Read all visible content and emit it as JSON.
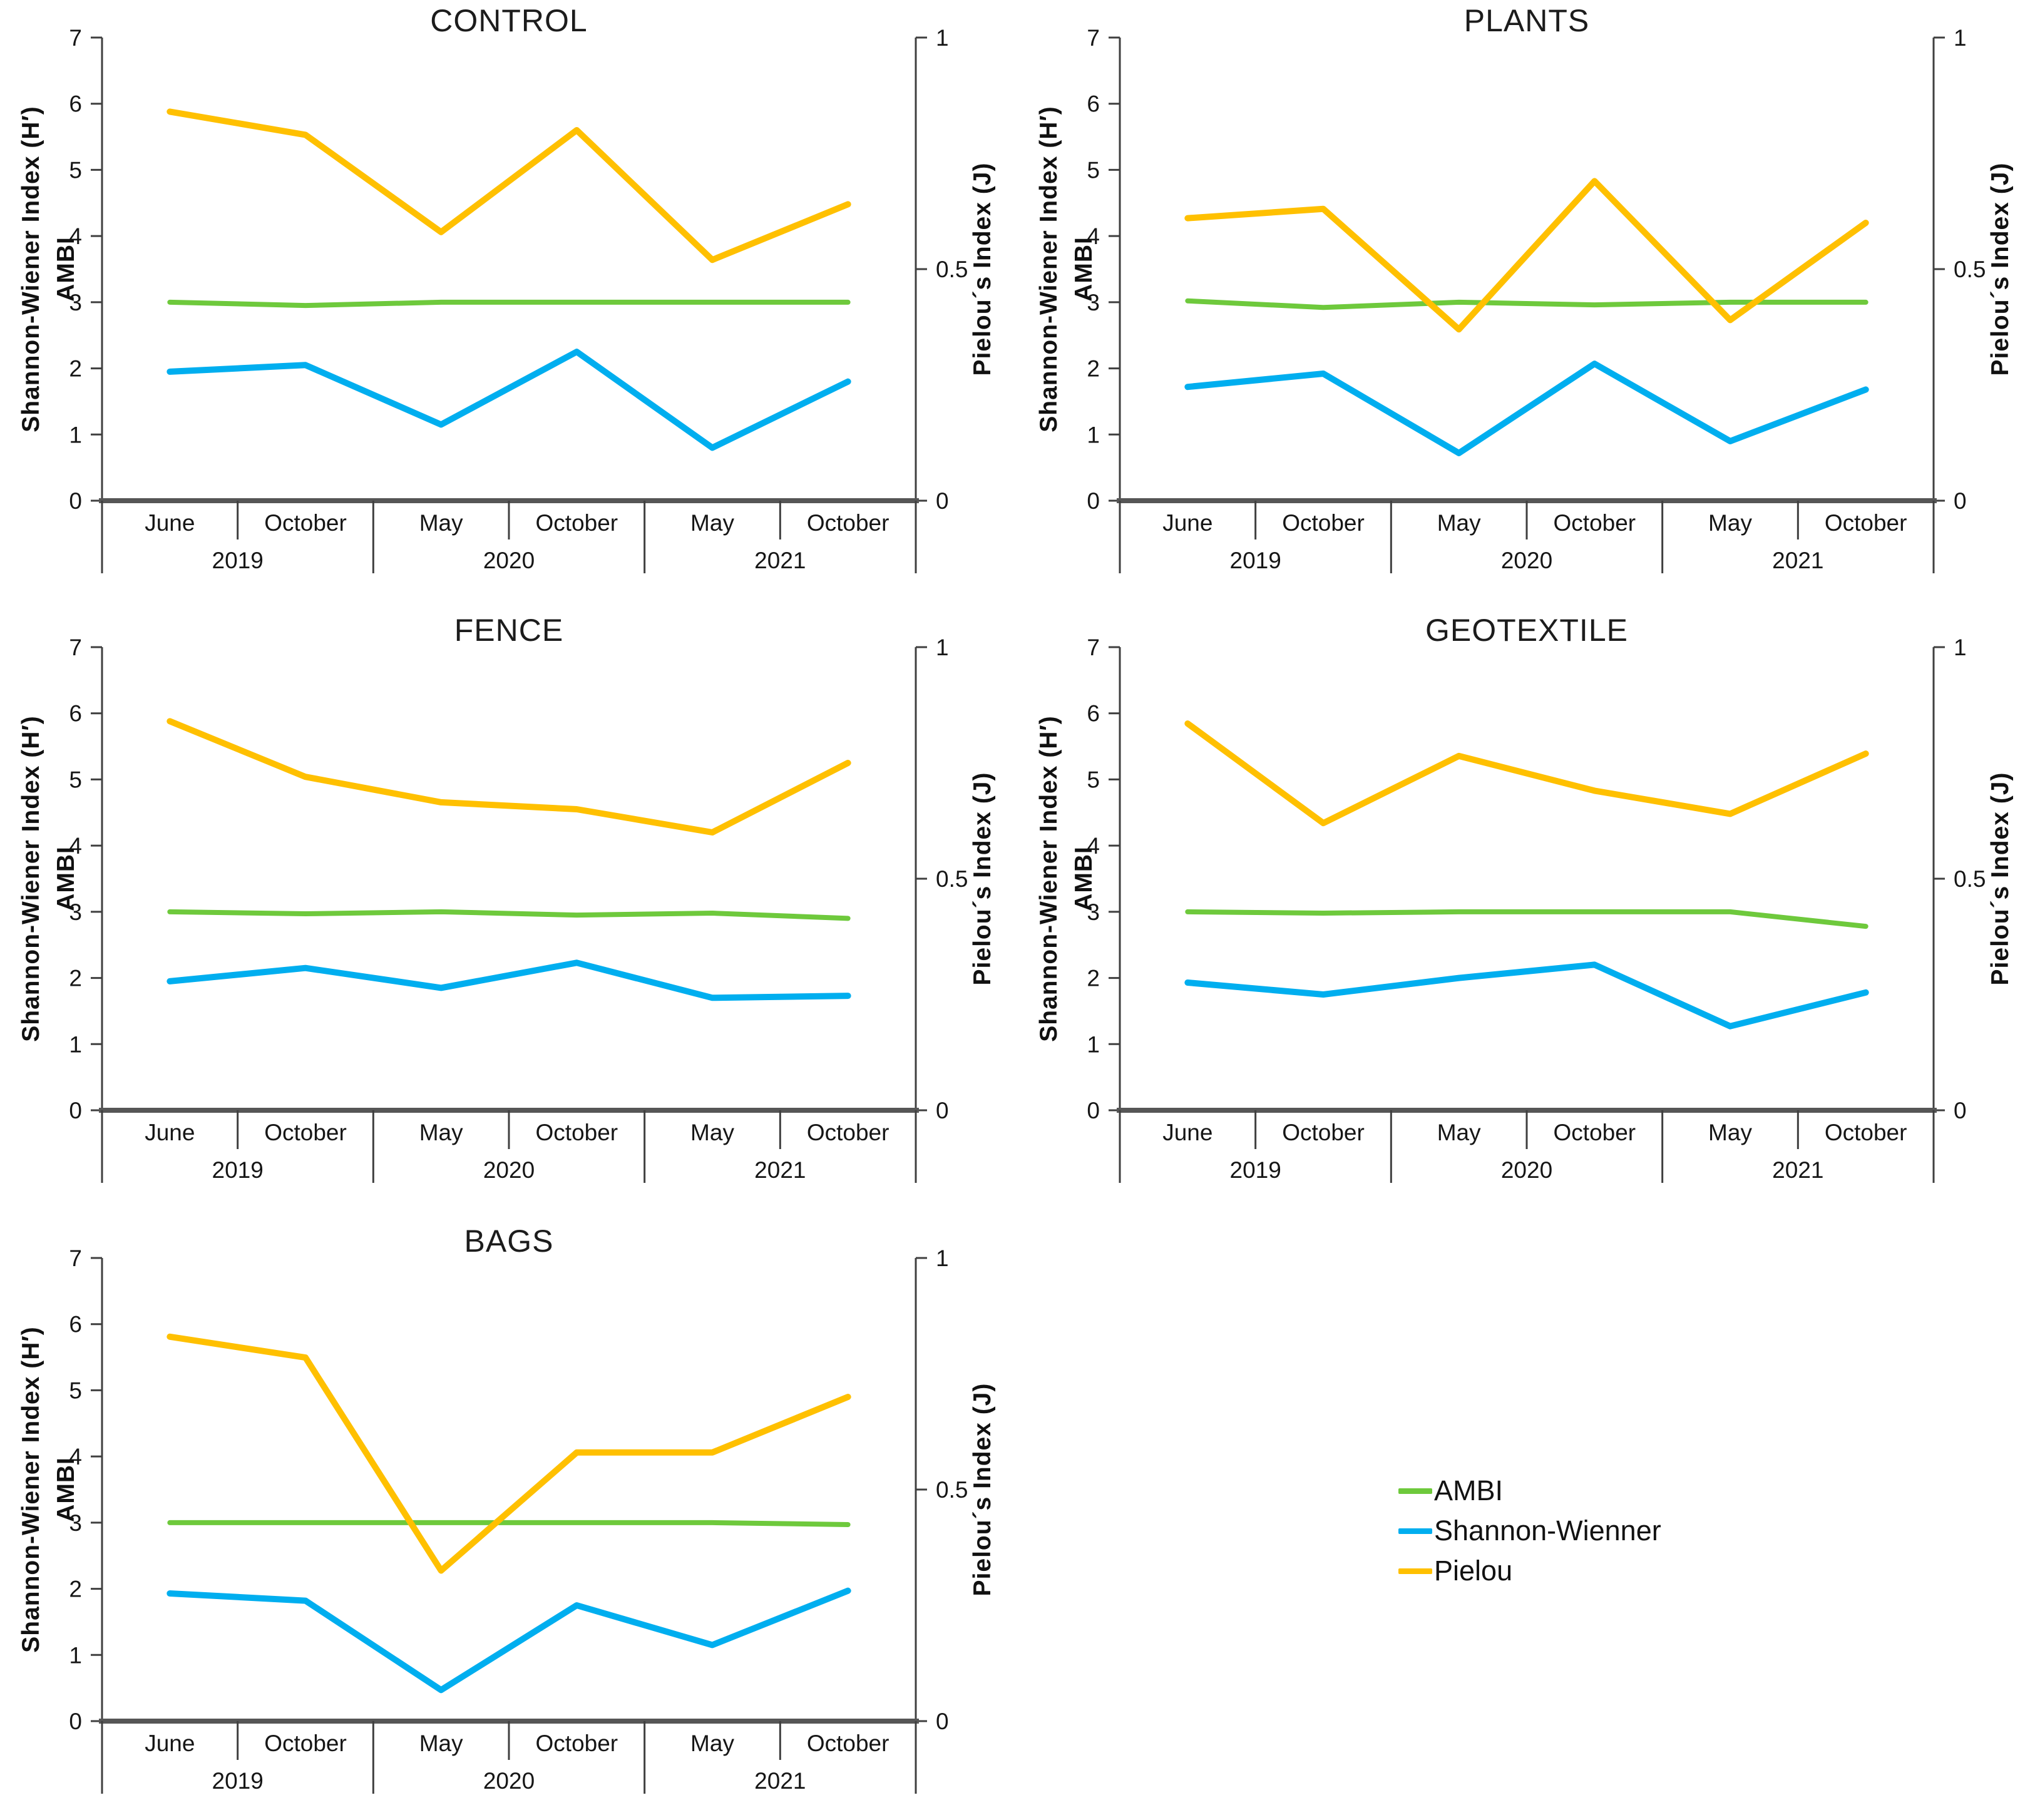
{
  "figure": {
    "description_visible_titles": [
      "CONTROL",
      "PLANTS",
      "FENCE",
      "GEOTEXTILE",
      "BAGS"
    ]
  },
  "axis": {
    "left_label_line1": "Shannon-Wiener Index (H′)",
    "left_label_line2": "AMBI",
    "right_label": "Pielou´s Index (J)",
    "left_ticks": [
      7,
      6,
      5,
      4,
      3,
      2,
      1,
      0
    ],
    "right_ticks": [
      {
        "label": "1",
        "value": 1
      },
      {
        "label": "0.5",
        "value": 0.5
      },
      {
        "label": "0",
        "value": 0
      }
    ],
    "left_range": [
      0,
      7
    ],
    "right_range": [
      0,
      1
    ],
    "months": [
      "June",
      "October",
      "May",
      "October",
      "May",
      "October"
    ],
    "years": [
      "2019",
      "2020",
      "2021"
    ]
  },
  "colors": {
    "ambi": "#6EC93C",
    "shannon": "#00AEEF",
    "pielou": "#FFC000",
    "axis": "#3F3F3F",
    "baseline": "#565656",
    "text": "#161616"
  },
  "legend": {
    "items": [
      {
        "label": "AMBI",
        "color_key": "ambi"
      },
      {
        "label": "Shannon-Wienner",
        "color_key": "shannon"
      },
      {
        "label": "Pielou",
        "color_key": "pielou"
      }
    ]
  },
  "chart_data": [
    {
      "type": "line",
      "title": "CONTROL",
      "categories": [
        "June 2019",
        "October 2019",
        "May 2020",
        "October 2020",
        "May 2021",
        "October 2021"
      ],
      "xlabel": "",
      "ylabel_left": "Shannon-Wiener Index (H′) / AMBI",
      "ylabel_right": "Pielou´s Index (J)",
      "ylim_left": [
        0,
        7
      ],
      "ylim_right": [
        0,
        1
      ],
      "grid": false,
      "series": [
        {
          "name": "AMBI",
          "color_key": "ambi",
          "axis": "left",
          "width": 8,
          "values": [
            3.0,
            2.95,
            3.0,
            3.0,
            3.0,
            3.0
          ]
        },
        {
          "name": "Shannon-Wienner",
          "color_key": "shannon",
          "axis": "left",
          "width": 10,
          "values": [
            1.95,
            2.05,
            1.15,
            2.25,
            0.8,
            1.8
          ]
        },
        {
          "name": "Pielou",
          "color_key": "pielou",
          "axis": "right",
          "width": 10,
          "values": [
            0.84,
            0.79,
            0.58,
            0.8,
            0.52,
            0.64
          ]
        }
      ]
    },
    {
      "type": "line",
      "title": "PLANTS",
      "categories": [
        "June 2019",
        "October 2019",
        "May 2020",
        "October 2020",
        "May 2021",
        "October 2021"
      ],
      "xlabel": "",
      "ylabel_left": "Shannon-Wiener Index (H′) / AMBI",
      "ylabel_right": "Pielou´s Index (J)",
      "ylim_left": [
        0,
        7
      ],
      "ylim_right": [
        0,
        1
      ],
      "grid": false,
      "series": [
        {
          "name": "AMBI",
          "color_key": "ambi",
          "axis": "left",
          "width": 8,
          "values": [
            3.02,
            2.92,
            3.0,
            2.96,
            3.0,
            3.0
          ]
        },
        {
          "name": "Shannon-Wienner",
          "color_key": "shannon",
          "axis": "left",
          "width": 10,
          "values": [
            1.72,
            1.92,
            0.72,
            2.07,
            0.9,
            1.68
          ]
        },
        {
          "name": "Pielou",
          "color_key": "pielou",
          "axis": "right",
          "width": 10,
          "values": [
            0.61,
            0.63,
            0.37,
            0.69,
            0.39,
            0.6
          ]
        }
      ]
    },
    {
      "type": "line",
      "title": "FENCE",
      "categories": [
        "June 2019",
        "October 2019",
        "May 2020",
        "October 2020",
        "May 2021",
        "October 2021"
      ],
      "xlabel": "",
      "ylabel_left": "Shannon-Wiener Index (H′) / AMBI",
      "ylabel_right": "Pielou´s Index (J)",
      "ylim_left": [
        0,
        7
      ],
      "ylim_right": [
        0,
        1
      ],
      "grid": false,
      "series": [
        {
          "name": "AMBI",
          "color_key": "ambi",
          "axis": "left",
          "width": 8,
          "values": [
            3.0,
            2.97,
            3.0,
            2.95,
            2.98,
            2.9
          ]
        },
        {
          "name": "Shannon-Wienner",
          "color_key": "shannon",
          "axis": "left",
          "width": 10,
          "values": [
            1.95,
            2.15,
            1.85,
            2.23,
            1.7,
            1.73
          ]
        },
        {
          "name": "Pielou",
          "color_key": "pielou",
          "axis": "right",
          "width": 10,
          "values": [
            0.84,
            0.72,
            0.665,
            0.65,
            0.6,
            0.75
          ]
        }
      ]
    },
    {
      "type": "line",
      "title": "GEOTEXTILE",
      "categories": [
        "June 2019",
        "October 2019",
        "May 2020",
        "October 2020",
        "May 2021",
        "October 2021"
      ],
      "xlabel": "",
      "ylabel_left": "Shannon-Wiener Index (H′) / AMBI",
      "ylabel_right": "Pielou´s Index (J)",
      "ylim_left": [
        0,
        7
      ],
      "ylim_right": [
        0,
        1
      ],
      "grid": false,
      "series": [
        {
          "name": "AMBI",
          "color_key": "ambi",
          "axis": "left",
          "width": 8,
          "values": [
            3.0,
            2.98,
            3.0,
            3.0,
            3.0,
            2.78
          ]
        },
        {
          "name": "Shannon-Wienner",
          "color_key": "shannon",
          "axis": "left",
          "width": 10,
          "values": [
            1.93,
            1.75,
            2.0,
            2.2,
            1.27,
            1.78
          ]
        },
        {
          "name": "Pielou",
          "color_key": "pielou",
          "axis": "right",
          "width": 10,
          "values": [
            0.835,
            0.62,
            0.765,
            0.69,
            0.64,
            0.77
          ]
        }
      ]
    },
    {
      "type": "line",
      "title": "BAGS",
      "categories": [
        "June 2019",
        "October 2019",
        "May 2020",
        "October 2020",
        "May 2021",
        "October 2021"
      ],
      "xlabel": "",
      "ylabel_left": "Shannon-Wiener Index (H′) / AMBI",
      "ylabel_right": "Pielou´s Index (J)",
      "ylim_left": [
        0,
        7
      ],
      "ylim_right": [
        0,
        1
      ],
      "grid": false,
      "series": [
        {
          "name": "AMBI",
          "color_key": "ambi",
          "axis": "left",
          "width": 8,
          "values": [
            3.0,
            3.0,
            3.0,
            3.0,
            3.0,
            2.97
          ]
        },
        {
          "name": "Shannon-Wienner",
          "color_key": "shannon",
          "axis": "left",
          "width": 10,
          "values": [
            1.93,
            1.82,
            0.47,
            1.75,
            1.15,
            1.97
          ]
        },
        {
          "name": "Pielou",
          "color_key": "pielou",
          "axis": "right",
          "width": 10,
          "values": [
            0.83,
            0.785,
            0.325,
            0.58,
            0.58,
            0.7
          ]
        }
      ]
    }
  ]
}
